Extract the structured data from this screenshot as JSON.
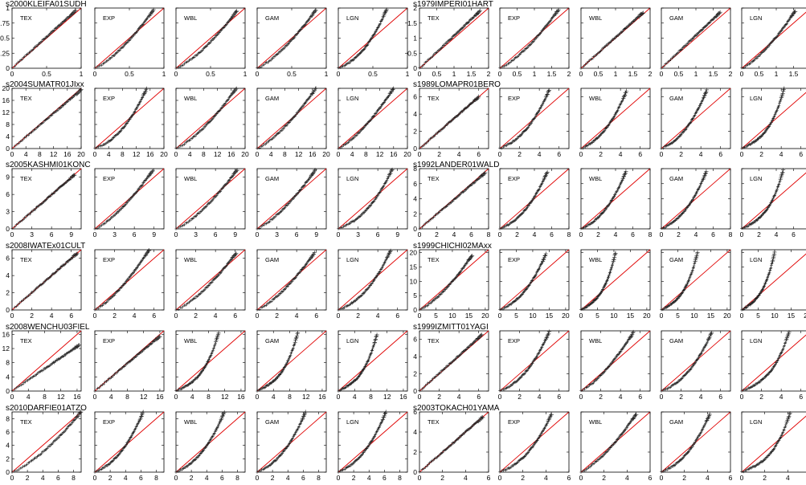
{
  "chart_data": [
    {
      "title": "s2000KLEIFA01SUDH",
      "type": "scatter",
      "reference_line": "y=x",
      "lim": [
        0,
        1
      ],
      "yticks": [
        0,
        0.25,
        0.5,
        0.75,
        1
      ],
      "ytick_labels": [
        "0",
        "0.25",
        "0.5",
        "0.75",
        "1"
      ],
      "xticks": [
        0,
        0.5,
        1
      ],
      "xtick_labels": [
        "0",
        "0.5",
        "1"
      ],
      "panels": [
        {
          "label": "TEX",
          "tail_end": [
            0.92,
            0.96
          ],
          "bend": 0
        },
        {
          "label": "EXP",
          "tail_end": [
            0.85,
            0.97
          ],
          "bend": 1
        },
        {
          "label": "WBL",
          "tail_end": [
            0.88,
            0.95
          ],
          "bend": 1
        },
        {
          "label": "GAM",
          "tail_end": [
            0.85,
            0.97
          ],
          "bend": 1
        },
        {
          "label": "LGN",
          "tail_end": [
            0.7,
            0.98
          ],
          "bend": 2
        }
      ]
    },
    {
      "title": "s1979IMPERI01HART",
      "type": "scatter",
      "reference_line": "y=x",
      "lim": [
        0,
        2
      ],
      "yticks": [
        0,
        0.5,
        1,
        1.5,
        2
      ],
      "ytick_labels": [
        "0",
        "0.5",
        "1",
        "1.5",
        "2"
      ],
      "xticks": [
        0,
        0.5,
        1,
        1.5,
        2
      ],
      "xtick_labels": [
        "0",
        "0.5",
        "1",
        "1.5",
        "2"
      ],
      "panels": [
        {
          "label": "TEX",
          "tail_end": [
            1.75,
            1.9
          ],
          "bend": 0
        },
        {
          "label": "EXP",
          "tail_end": [
            1.7,
            1.95
          ],
          "bend": 1
        },
        {
          "label": "WBL",
          "tail_end": [
            1.8,
            1.85
          ],
          "bend": 0
        },
        {
          "label": "GAM",
          "tail_end": [
            1.7,
            1.85
          ],
          "bend": 0
        },
        {
          "label": "LGN",
          "tail_end": [
            1.55,
            1.9
          ],
          "bend": 1
        }
      ]
    },
    {
      "title": "s2004SUMATR01JIxx",
      "type": "scatter",
      "reference_line": "y=x",
      "lim": [
        0,
        20
      ],
      "yticks": [
        0,
        4,
        8,
        12,
        16,
        20
      ],
      "ytick_labels": [
        "0",
        "4",
        "8",
        "12",
        "16",
        "20"
      ],
      "xticks": [
        0,
        4,
        8,
        12,
        16,
        20
      ],
      "xtick_labels": [
        "0",
        "4",
        "8",
        "12",
        "16",
        "20"
      ],
      "panels": [
        {
          "label": "TEX",
          "tail_end": [
            20,
            19.5
          ],
          "bend": 0
        },
        {
          "label": "EXP",
          "tail_end": [
            15,
            20
          ],
          "bend": 2
        },
        {
          "label": "WBL",
          "tail_end": [
            17.5,
            20
          ],
          "bend": 1
        },
        {
          "label": "GAM",
          "tail_end": [
            17,
            20
          ],
          "bend": 1
        },
        {
          "label": "LGN",
          "tail_end": [
            16,
            20
          ],
          "bend": 1
        }
      ]
    },
    {
      "title": "s1989LOMAPR01BERO",
      "type": "scatter",
      "reference_line": "y=x",
      "lim": [
        0,
        7
      ],
      "yticks": [
        0,
        2,
        4,
        6
      ],
      "ytick_labels": [
        "0",
        "2",
        "4",
        "6"
      ],
      "xticks": [
        0,
        2,
        4,
        6
      ],
      "xtick_labels": [
        "0",
        "2",
        "4",
        "6"
      ],
      "panels": [
        {
          "label": "TEX",
          "tail_end": [
            6,
            6
          ],
          "bend": 0
        },
        {
          "label": "EXP",
          "tail_end": [
            5,
            6.8
          ],
          "bend": 2
        },
        {
          "label": "WBL",
          "tail_end": [
            4.6,
            6.7
          ],
          "bend": 2
        },
        {
          "label": "GAM",
          "tail_end": [
            4.6,
            6.8
          ],
          "bend": 2
        },
        {
          "label": "LGN",
          "tail_end": [
            4.3,
            7
          ],
          "bend": 3
        }
      ]
    },
    {
      "title": "s2005KASHMI01KONC",
      "type": "scatter",
      "reference_line": "y=x",
      "lim": [
        0,
        10.5
      ],
      "yticks": [
        0,
        3,
        6,
        9
      ],
      "ytick_labels": [
        "0",
        "3",
        "6",
        "9"
      ],
      "xticks": [
        0,
        3,
        6,
        9
      ],
      "xtick_labels": [
        "0",
        "3",
        "6",
        "9"
      ],
      "panels": [
        {
          "label": "TEX",
          "tail_end": [
            9.5,
            9.4
          ],
          "bend": 0
        },
        {
          "label": "EXP",
          "tail_end": [
            8.8,
            10.2
          ],
          "bend": 1
        },
        {
          "label": "WBL",
          "tail_end": [
            9.3,
            10.3
          ],
          "bend": 1
        },
        {
          "label": "GAM",
          "tail_end": [
            8.8,
            10.2
          ],
          "bend": 1
        },
        {
          "label": "LGN",
          "tail_end": [
            8.2,
            10.4
          ],
          "bend": 2
        }
      ]
    },
    {
      "title": "s1992LANDER01WALD",
      "type": "scatter",
      "reference_line": "y=x",
      "lim": [
        0,
        8
      ],
      "yticks": [
        0,
        2,
        4,
        6,
        8
      ],
      "ytick_labels": [
        "0",
        "2",
        "4",
        "6",
        "8"
      ],
      "xticks": [
        0,
        2,
        4,
        6,
        8
      ],
      "xtick_labels": [
        "0",
        "2",
        "4",
        "6",
        "8"
      ],
      "panels": [
        {
          "label": "TEX",
          "tail_end": [
            7.6,
            7.4
          ],
          "bend": 0
        },
        {
          "label": "EXP",
          "tail_end": [
            5.5,
            7.6
          ],
          "bend": 2
        },
        {
          "label": "WBL",
          "tail_end": [
            5.2,
            7.6
          ],
          "bend": 2
        },
        {
          "label": "GAM",
          "tail_end": [
            5.2,
            7.6
          ],
          "bend": 2
        },
        {
          "label": "LGN",
          "tail_end": [
            4.8,
            7.8
          ],
          "bend": 3
        }
      ]
    },
    {
      "title": "s2008IWATEx01CULT",
      "type": "scatter",
      "reference_line": "y=x",
      "lim": [
        0,
        7
      ],
      "yticks": [
        0,
        2,
        4,
        6
      ],
      "ytick_labels": [
        "0",
        "2",
        "4",
        "6"
      ],
      "xticks": [
        0,
        2,
        4,
        6
      ],
      "xtick_labels": [
        "0",
        "2",
        "4",
        "6"
      ],
      "panels": [
        {
          "label": "TEX",
          "tail_end": [
            6.6,
            6.6
          ],
          "bend": 0
        },
        {
          "label": "EXP",
          "tail_end": [
            5.5,
            7
          ],
          "bend": 1
        },
        {
          "label": "WBL",
          "tail_end": [
            6.1,
            6.6
          ],
          "bend": 1
        },
        {
          "label": "GAM",
          "tail_end": [
            5.8,
            6.6
          ],
          "bend": 1
        },
        {
          "label": "LGN",
          "tail_end": [
            5.3,
            6.9
          ],
          "bend": 2
        }
      ]
    },
    {
      "title": "s1999CHICHI02MAxx",
      "type": "scatter",
      "reference_line": "y=x",
      "lim": [
        0,
        21
      ],
      "yticks": [
        0,
        5,
        10,
        15,
        20
      ],
      "ytick_labels": [
        "0",
        "5",
        "10",
        "15",
        "20"
      ],
      "xticks": [
        0,
        5,
        10,
        15,
        20
      ],
      "xtick_labels": [
        "0",
        "5",
        "10",
        "15",
        "20"
      ],
      "panels": [
        {
          "label": "TEX",
          "tail_end": [
            16,
            19
          ],
          "bend": 1
        },
        {
          "label": "EXP",
          "tail_end": [
            14,
            19.5
          ],
          "bend": 2
        },
        {
          "label": "WBL",
          "tail_end": [
            10.5,
            20
          ],
          "bend": 3
        },
        {
          "label": "GAM",
          "tail_end": [
            11,
            20
          ],
          "bend": 3
        },
        {
          "label": "LGN",
          "tail_end": [
            10,
            20
          ],
          "bend": 3
        }
      ]
    },
    {
      "title": "s2008WENCHU03FIEL",
      "type": "scatter",
      "reference_line": "y=x",
      "lim": [
        0,
        17
      ],
      "yticks": [
        0,
        4,
        8,
        12,
        16
      ],
      "ytick_labels": [
        "0",
        "4",
        "8",
        "12",
        "16"
      ],
      "xticks": [
        0,
        4,
        8,
        12,
        16
      ],
      "xtick_labels": [
        "0",
        "4",
        "8",
        "12",
        "16"
      ],
      "panels": [
        {
          "label": "TEX",
          "tail_end": [
            16.5,
            13
          ],
          "bend": 0
        },
        {
          "label": "EXP",
          "tail_end": [
            16,
            15.5
          ],
          "bend": 0
        },
        {
          "label": "WBL",
          "tail_end": [
            10.5,
            16.5
          ],
          "bend": 3
        },
        {
          "label": "GAM",
          "tail_end": [
            10,
            16.5
          ],
          "bend": 3
        },
        {
          "label": "LGN",
          "tail_end": [
            9.5,
            16
          ],
          "bend": 3
        }
      ]
    },
    {
      "title": "s1999IZMITT01YAGI",
      "type": "scatter",
      "reference_line": "y=x",
      "lim": [
        0,
        7
      ],
      "yticks": [
        0,
        2,
        4,
        6
      ],
      "ytick_labels": [
        "0",
        "2",
        "4",
        "6"
      ],
      "xticks": [
        0,
        2,
        4,
        6
      ],
      "xtick_labels": [
        "0",
        "2",
        "4",
        "6"
      ],
      "panels": [
        {
          "label": "TEX",
          "tail_end": [
            6.3,
            6.5
          ],
          "bend": 0
        },
        {
          "label": "EXP",
          "tail_end": [
            5,
            6.9
          ],
          "bend": 2
        },
        {
          "label": "WBL",
          "tail_end": [
            5.3,
            6.8
          ],
          "bend": 1
        },
        {
          "label": "GAM",
          "tail_end": [
            5.1,
            6.8
          ],
          "bend": 2
        },
        {
          "label": "LGN",
          "tail_end": [
            4.8,
            6.9
          ],
          "bend": 3
        }
      ]
    },
    {
      "title": "s2010DARFIE01ATZO",
      "type": "scatter",
      "reference_line": "y=x",
      "lim": [
        0,
        9
      ],
      "yticks": [
        0,
        2,
        4,
        6,
        8
      ],
      "ytick_labels": [
        "0",
        "2",
        "4",
        "6",
        "8"
      ],
      "xticks": [
        0,
        2,
        4,
        6,
        8
      ],
      "xtick_labels": [
        "0",
        "2",
        "4",
        "6",
        "8"
      ],
      "panels": [
        {
          "label": "TEX",
          "tail_end": [
            9,
            9
          ],
          "bend": 1
        },
        {
          "label": "EXP",
          "tail_end": [
            6.3,
            9
          ],
          "bend": 2
        },
        {
          "label": "WBL",
          "tail_end": [
            6.3,
            9
          ],
          "bend": 2
        },
        {
          "label": "GAM",
          "tail_end": [
            6.3,
            9
          ],
          "bend": 2
        },
        {
          "label": "LGN",
          "tail_end": [
            6.2,
            9
          ],
          "bend": 2
        }
      ]
    },
    {
      "title": "s2003TOKACH01YAMA",
      "type": "scatter",
      "reference_line": "y=x",
      "lim": [
        0,
        6
      ],
      "yticks": [
        0,
        2,
        4,
        6
      ],
      "ytick_labels": [
        "0",
        "2",
        "4",
        "6"
      ],
      "xticks": [
        0,
        2,
        4,
        6
      ],
      "xtick_labels": [
        "0",
        "2",
        "4",
        "6"
      ],
      "panels": [
        {
          "label": "TEX",
          "tail_end": [
            5.5,
            5.5
          ],
          "bend": 0
        },
        {
          "label": "EXP",
          "tail_end": [
            4.5,
            5.8
          ],
          "bend": 2
        },
        {
          "label": "WBL",
          "tail_end": [
            4.8,
            5.8
          ],
          "bend": 1
        },
        {
          "label": "GAM",
          "tail_end": [
            4.2,
            5.8
          ],
          "bend": 2
        },
        {
          "label": "LGN",
          "tail_end": [
            4.2,
            5.9
          ],
          "bend": 3
        }
      ]
    }
  ]
}
